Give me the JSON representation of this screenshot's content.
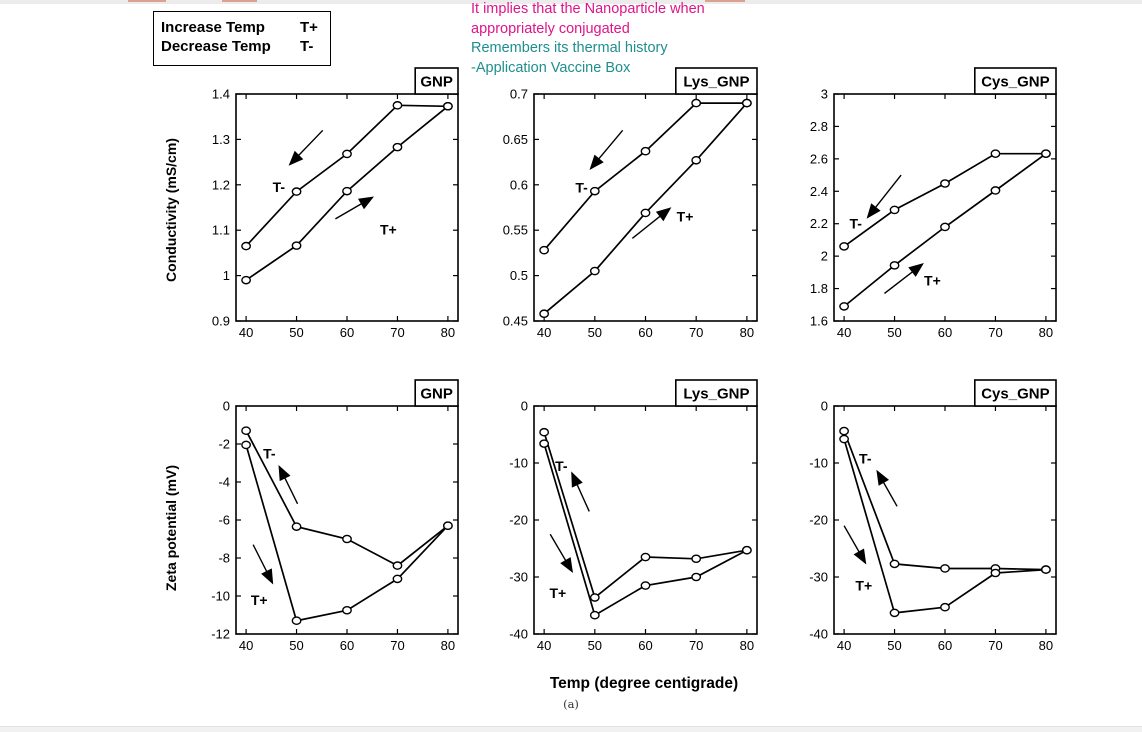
{
  "legend": {
    "rows": [
      {
        "label": "Increase Temp",
        "symbol": "T+"
      },
      {
        "label": "Decrease Temp",
        "symbol": "T-"
      }
    ]
  },
  "annotation": {
    "line1": "It implies that the Nanoparticle when",
    "line2": "appropriately conjugated",
    "line3": "Remembers its thermal history",
    "line4": "-Application Vaccine Box",
    "color_primary": "#e0148a",
    "color_secondary": "#1f8e8e"
  },
  "shared_xlabel": "Temp (degree centigrade)",
  "caption": "(a)",
  "chart_data": [
    {
      "type": "line",
      "title": "GNP",
      "ylabel": "Conductivity (mS/cm)",
      "x": [
        40,
        50,
        60,
        70,
        80
      ],
      "xlim": [
        38,
        82
      ],
      "ylim": [
        0.9,
        1.4
      ],
      "yticks": [
        0.9,
        1,
        1.1,
        1.2,
        1.3,
        1.4
      ],
      "ytick_labels": [
        "0.9",
        "1",
        "1.1",
        "1.2",
        "1.3",
        "1.4"
      ],
      "xtick_labels": [
        "40",
        "50",
        "60",
        "70",
        "80"
      ],
      "series": [
        {
          "name": "T-",
          "values": [
            1.065,
            1.185,
            1.268,
            1.375,
            1.373
          ]
        },
        {
          "name": "T+",
          "values": [
            0.99,
            1.066,
            1.186,
            1.283,
            1.373
          ]
        }
      ],
      "labels": [
        {
          "text": "T-",
          "x": 46.5,
          "y": 1.195
        },
        {
          "text": "T+",
          "x": 68.2,
          "y": 1.102
        }
      ],
      "arrows": [
        {
          "x1": 55.2,
          "y1": 1.32,
          "x2": 48.7,
          "y2": 1.245
        },
        {
          "x1": 57.7,
          "y1": 1.125,
          "x2": 65,
          "y2": 1.172
        }
      ]
    },
    {
      "type": "line",
      "title": "Lys_GNP",
      "ylabel": "",
      "x": [
        40,
        50,
        60,
        70,
        80
      ],
      "xlim": [
        38,
        82
      ],
      "ylim": [
        0.45,
        0.7
      ],
      "yticks": [
        0.45,
        0.5,
        0.55,
        0.6,
        0.65,
        0.7
      ],
      "ytick_labels": [
        "0.45",
        "0.5",
        "0.55",
        "0.6",
        "0.65",
        "0.7"
      ],
      "xtick_labels": [
        "40",
        "50",
        "60",
        "70",
        "80"
      ],
      "series": [
        {
          "name": "T-",
          "values": [
            0.528,
            0.593,
            0.637,
            0.69,
            0.69
          ]
        },
        {
          "name": "T+",
          "values": [
            0.458,
            0.505,
            0.569,
            0.627,
            0.69
          ]
        }
      ],
      "labels": [
        {
          "text": "T-",
          "x": 47.4,
          "y": 0.597
        },
        {
          "text": "T+",
          "x": 67.8,
          "y": 0.565
        }
      ],
      "arrows": [
        {
          "x1": 55.5,
          "y1": 0.66,
          "x2": 49.2,
          "y2": 0.618
        },
        {
          "x1": 57.4,
          "y1": 0.541,
          "x2": 64.8,
          "y2": 0.574
        }
      ]
    },
    {
      "type": "line",
      "title": "Cys_GNP",
      "ylabel": "",
      "x": [
        40,
        50,
        60,
        70,
        80
      ],
      "xlim": [
        38,
        82
      ],
      "ylim": [
        1.6,
        3
      ],
      "yticks": [
        1.6,
        1.8,
        2,
        2.2,
        2.4,
        2.6,
        2.8,
        3
      ],
      "ytick_labels": [
        "1.6",
        "1.8",
        "2",
        "2.2",
        "2.4",
        "2.6",
        "2.8",
        "3"
      ],
      "xtick_labels": [
        "40",
        "50",
        "60",
        "70",
        "80"
      ],
      "series": [
        {
          "name": "T-",
          "values": [
            2.06,
            2.285,
            2.448,
            2.632,
            2.632
          ]
        },
        {
          "name": "T+",
          "values": [
            1.69,
            1.943,
            2.18,
            2.405,
            2.632
          ]
        }
      ],
      "labels": [
        {
          "text": "T-",
          "x": 42.3,
          "y": 2.2
        },
        {
          "text": "T+",
          "x": 57.5,
          "y": 1.85
        }
      ],
      "arrows": [
        {
          "x1": 51.3,
          "y1": 2.5,
          "x2": 44.7,
          "y2": 2.24
        },
        {
          "x1": 48,
          "y1": 1.77,
          "x2": 55.5,
          "y2": 1.95
        }
      ]
    },
    {
      "type": "line",
      "title": "GNP",
      "ylabel": "Zeta potential (mV)",
      "x": [
        40,
        50,
        60,
        70,
        80
      ],
      "xlim": [
        38,
        82
      ],
      "ylim": [
        -12,
        0
      ],
      "yticks": [
        -12,
        -10,
        -8,
        -6,
        -4,
        -2,
        0
      ],
      "ytick_labels": [
        "-12",
        "-10",
        "-8",
        "-6",
        "-4",
        "-2",
        "0"
      ],
      "xtick_labels": [
        "40",
        "50",
        "60",
        "70",
        "80"
      ],
      "series": [
        {
          "name": "T-",
          "values": [
            -1.3,
            -6.35,
            -7.0,
            -8.4,
            -6.3
          ]
        },
        {
          "name": "T+",
          "values": [
            -2.05,
            -11.3,
            -10.75,
            -9.1,
            -6.3
          ]
        }
      ],
      "labels": [
        {
          "text": "T-",
          "x": 44.6,
          "y": -2.5
        },
        {
          "text": "T+",
          "x": 42.6,
          "y": -10.2
        }
      ],
      "arrows": [
        {
          "x1": 50.2,
          "y1": -5.15,
          "x2": 46.6,
          "y2": -3.2
        },
        {
          "x1": 41.4,
          "y1": -7.3,
          "x2": 45.2,
          "y2": -9.3
        }
      ]
    },
    {
      "type": "line",
      "title": "Lys_GNP",
      "ylabel": "",
      "x": [
        40,
        50,
        60,
        70,
        80
      ],
      "xlim": [
        38,
        82
      ],
      "ylim": [
        -40,
        0
      ],
      "yticks": [
        -40,
        -30,
        -20,
        -10,
        0
      ],
      "ytick_labels": [
        "-40",
        "-30",
        "-20",
        "-10",
        "0"
      ],
      "xtick_labels": [
        "40",
        "50",
        "60",
        "70",
        "80"
      ],
      "series": [
        {
          "name": "T-",
          "values": [
            -4.6,
            -33.6,
            -26.5,
            -26.8,
            -25.3
          ]
        },
        {
          "name": "T+",
          "values": [
            -6.6,
            -36.7,
            -31.5,
            -30.0,
            -25.3
          ]
        }
      ],
      "labels": [
        {
          "text": "T-",
          "x": 43.4,
          "y": -10.5
        },
        {
          "text": "T+",
          "x": 42.7,
          "y": -32.8
        }
      ],
      "arrows": [
        {
          "x1": 48.9,
          "y1": -18.5,
          "x2": 45.5,
          "y2": -11.8
        },
        {
          "x1": 41.2,
          "y1": -22.5,
          "x2": 45.5,
          "y2": -29
        }
      ]
    },
    {
      "type": "line",
      "title": "Cys_GNP",
      "ylabel": "",
      "x": [
        40,
        50,
        60,
        70,
        80
      ],
      "xlim": [
        38,
        82
      ],
      "ylim": [
        -40,
        0
      ],
      "yticks": [
        -40,
        -30,
        -20,
        -10,
        0
      ],
      "ytick_labels": [
        "-40",
        "-30",
        "-20",
        "-10",
        "0"
      ],
      "xtick_labels": [
        "40",
        "50",
        "60",
        "70",
        "80"
      ],
      "series": [
        {
          "name": "T-",
          "values": [
            -4.4,
            -27.7,
            -28.5,
            -28.5,
            -28.7
          ]
        },
        {
          "name": "T+",
          "values": [
            -5.8,
            -36.3,
            -35.3,
            -29.3,
            -28.7
          ]
        }
      ],
      "labels": [
        {
          "text": "T-",
          "x": 44.2,
          "y": -9.2
        },
        {
          "text": "T+",
          "x": 43.9,
          "y": -31.5
        }
      ],
      "arrows": [
        {
          "x1": 50.5,
          "y1": -17.6,
          "x2": 46.6,
          "y2": -11.5
        },
        {
          "x1": 40,
          "y1": -21,
          "x2": 44.2,
          "y2": -27.5
        }
      ]
    }
  ]
}
